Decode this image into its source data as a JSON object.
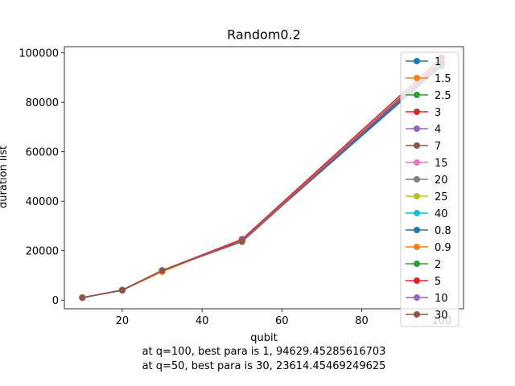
{
  "chart_data": {
    "type": "line",
    "title": "Random0.2",
    "xlabel": "qubit",
    "ylabel": "duration list",
    "xlim": [
      5.5,
      105.5
    ],
    "ylim": [
      -3500,
      102500
    ],
    "x_ticks": [
      20,
      40,
      60,
      80,
      100
    ],
    "y_ticks": [
      0,
      20000,
      40000,
      60000,
      80000,
      100000
    ],
    "x": [
      10,
      20,
      30,
      50,
      100
    ],
    "series": [
      {
        "name": "1",
        "color": "#1f77b4",
        "values": [
          1000,
          4000,
          12000,
          24000,
          94629
        ]
      },
      {
        "name": "1.5",
        "color": "#ff7f0e",
        "values": [
          1000,
          4000,
          11500,
          24500,
          95500
        ]
      },
      {
        "name": "2.5",
        "color": "#2ca02c",
        "values": [
          1000,
          4000,
          12000,
          24000,
          96500
        ]
      },
      {
        "name": "3",
        "color": "#d62728",
        "values": [
          1000,
          4100,
          12000,
          24200,
          97000
        ]
      },
      {
        "name": "4",
        "color": "#9467bd",
        "values": [
          1000,
          4000,
          12000,
          24000,
          96800
        ]
      },
      {
        "name": "7",
        "color": "#8c564b",
        "values": [
          1000,
          4000,
          12000,
          24000,
          96500
        ]
      },
      {
        "name": "15",
        "color": "#e377c2",
        "values": [
          1000,
          4000,
          12000,
          24000,
          96500
        ]
      },
      {
        "name": "20",
        "color": "#7f7f7f",
        "values": [
          1000,
          4000,
          12000,
          24000,
          96300
        ]
      },
      {
        "name": "25",
        "color": "#bcbd22",
        "values": [
          1000,
          4000,
          12000,
          24000,
          96300
        ]
      },
      {
        "name": "40",
        "color": "#17becf",
        "values": [
          1000,
          4000,
          12000,
          24000,
          96300
        ]
      },
      {
        "name": "0.8",
        "color": "#1f77b4",
        "values": [
          1000,
          4000,
          12000,
          24000,
          95000
        ]
      },
      {
        "name": "0.9",
        "color": "#ff7f0e",
        "values": [
          1000,
          4000,
          11500,
          24500,
          96000
        ]
      },
      {
        "name": "2",
        "color": "#2ca02c",
        "values": [
          1000,
          4000,
          12000,
          24000,
          96500
        ]
      },
      {
        "name": "5",
        "color": "#d62728",
        "values": [
          1000,
          4100,
          12000,
          24600,
          98000
        ]
      },
      {
        "name": "10",
        "color": "#9467bd",
        "values": [
          1000,
          4000,
          12000,
          24000,
          96500
        ]
      },
      {
        "name": "30",
        "color": "#8c564b",
        "values": [
          1000,
          4000,
          12000,
          23614,
          96000
        ]
      }
    ],
    "annotations": [
      "at q=100, best para is 1, 94629.45285616703",
      "at q=50, best para is 30, 23614.45469249625"
    ],
    "grid": false,
    "legend_position": "right"
  }
}
